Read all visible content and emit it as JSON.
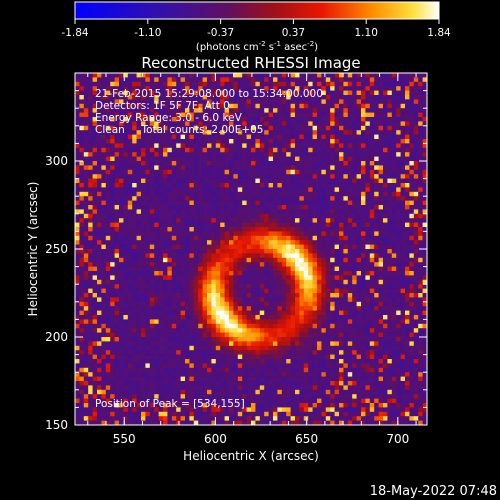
{
  "chart_data": {
    "type": "heatmap",
    "title": "Reconstructed RHESSI Image",
    "xlabel": "Heliocentric X (arcsec)",
    "ylabel": "Heliocentric Y (arcsec)",
    "xlim": [
      523,
      716
    ],
    "ylim": [
      150,
      350
    ],
    "x_ticks": [
      550,
      600,
      650,
      700
    ],
    "y_ticks": [
      150,
      200,
      250,
      300
    ],
    "colorbar": {
      "ticks": [
        "-1.84",
        "-1.10",
        "-0.37",
        "0.37",
        "1.10",
        "1.84"
      ],
      "range": [
        -1.84,
        1.84
      ],
      "unit_prefix": "(photons cm",
      "unit_sup1": "-2",
      "unit_mid1": " s",
      "unit_sup2": "-1",
      "unit_mid2": " asec",
      "unit_sup3": "-2",
      "unit_suffix": ")"
    },
    "annotations": [
      "21-Feb-2015 15:29:08.000 to 15:34:00.000",
      "Detectors: 1F 5F 7F, Att 0",
      "Energy Range: 3.0 - 6.0 keV",
      "Clean     Total counts: 2.00E+05"
    ],
    "peak_label": "Position of Peak = [534,155]",
    "source": {
      "shape": "ring",
      "center_x": 625,
      "center_y": 227,
      "radius_arcsec": 26,
      "peak_intensity": 1.7
    }
  },
  "footer": {
    "date": "18-May-2022 07:48"
  }
}
